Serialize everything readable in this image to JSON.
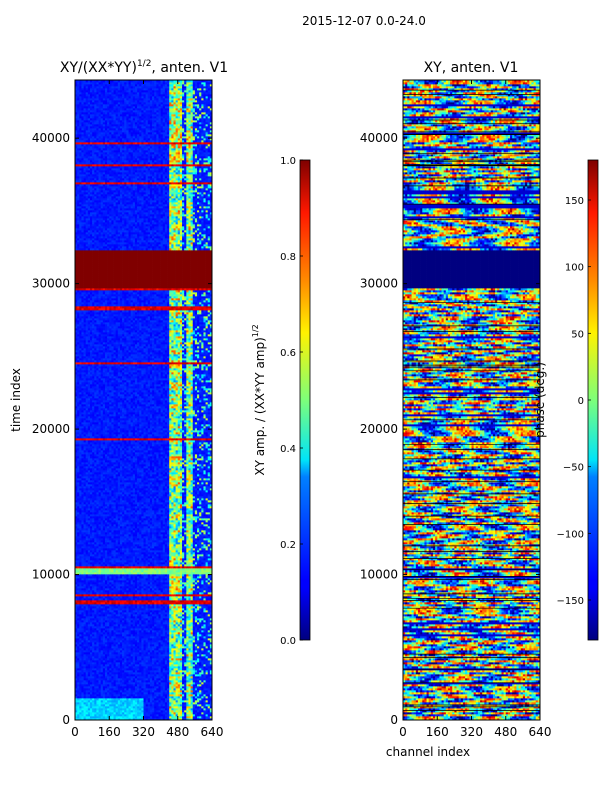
{
  "chart_data": [
    {
      "type": "heatmap",
      "suptitle": "2015-12-07 0.0-24.0",
      "title": {
        "main": "XY/(XX*YY)",
        "sup": "1/2",
        "suffix": ", anten. V1"
      },
      "xlabel": "",
      "ylabel": "time index",
      "xlim": [
        0,
        640
      ],
      "ylim": [
        0,
        44000
      ],
      "xticks": [
        "0",
        "160",
        "320",
        "480",
        "640"
      ],
      "yticks": [
        "0",
        "10000",
        "20000",
        "30000",
        "40000"
      ],
      "xtick_values": [
        0,
        160,
        320,
        480,
        640
      ],
      "ytick_values": [
        0,
        10000,
        20000,
        30000,
        40000
      ],
      "colormap": "jet",
      "colorbar": {
        "label": "XY amp. / (XX*YY amp)",
        "label_sup": "1/2",
        "range": [
          0.0,
          1.0
        ],
        "ticks": [
          "0.0",
          "0.2",
          "0.4",
          "0.6",
          "0.8",
          "1.0"
        ],
        "tick_values": [
          0.0,
          0.2,
          0.4,
          0.6,
          0.8,
          1.0
        ]
      },
      "features": {
        "saturated_block": {
          "y0": 29700,
          "y1": 32300,
          "value": 1.0
        },
        "bright_column_bands": [
          [
            440,
            500
          ],
          [
            520,
            545
          ]
        ],
        "low_background_value": 0.12
      }
    },
    {
      "type": "heatmap",
      "title": {
        "main": "XY, anten. V1",
        "sup": "",
        "suffix": ""
      },
      "xlabel": "channel index",
      "ylabel": "",
      "xlim": [
        0,
        640
      ],
      "ylim": [
        0,
        44000
      ],
      "xticks": [
        "0",
        "160",
        "320",
        "480",
        "640"
      ],
      "yticks": [
        "0",
        "10000",
        "20000",
        "30000",
        "40000"
      ],
      "xtick_values": [
        0,
        160,
        320,
        480,
        640
      ],
      "ytick_values": [
        0,
        10000,
        20000,
        30000,
        40000
      ],
      "colormap": "jet",
      "colorbar": {
        "label": "phase (deg.)",
        "label_sup": "",
        "range": [
          -180,
          180
        ],
        "ticks": [
          "−150",
          "−100",
          "−50",
          "0",
          "50",
          "100",
          "150"
        ],
        "tick_values": [
          -150,
          -100,
          -50,
          0,
          50,
          100,
          150
        ]
      },
      "features": {
        "saturated_block": {
          "y0": 29700,
          "y1": 32300,
          "value": -180
        }
      }
    }
  ]
}
